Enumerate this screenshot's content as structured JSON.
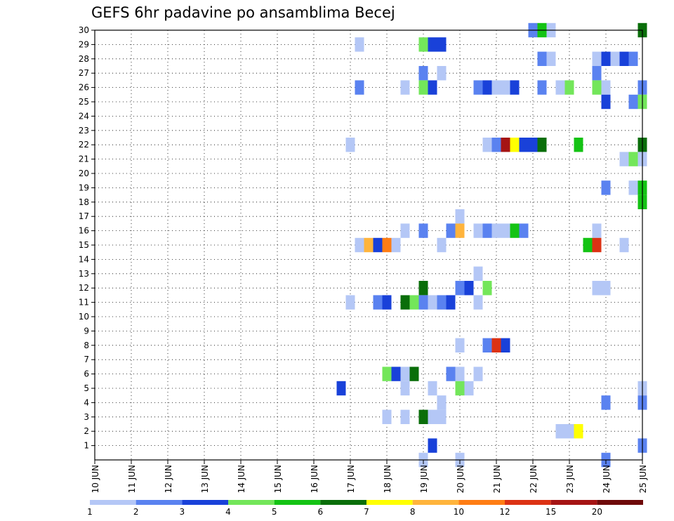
{
  "chart_data": {
    "type": "heatmap",
    "title": "GEFS 6hr padavine po ansamblima Becej",
    "x_tick_labels": [
      "10 JUN",
      "11 JUN",
      "12 JUN",
      "13 JUN",
      "14 JUN",
      "15 JUN",
      "16 JUN",
      "17 JUN",
      "18 JUN",
      "19 JUN",
      "20 JUN",
      "21 JUN",
      "22 JUN",
      "23 JUN",
      "24 JUN",
      "25 JUN"
    ],
    "x_range_days": [
      10,
      25
    ],
    "step_days": 0.25,
    "y_tick_labels": [
      "1",
      "2",
      "3",
      "4",
      "5",
      "6",
      "7",
      "8",
      "9",
      "10",
      "11",
      "12",
      "13",
      "14",
      "15",
      "16",
      "17",
      "18",
      "19",
      "20",
      "21",
      "22",
      "23",
      "24",
      "25",
      "26",
      "27",
      "28",
      "29",
      "30"
    ],
    "y_range": [
      0,
      30
    ],
    "grid": "dotted",
    "legend": {
      "position": "bottom",
      "thresholds": [
        "1",
        "2",
        "3",
        "4",
        "5",
        "6",
        "7",
        "8",
        "10",
        "12",
        "15",
        "20"
      ],
      "colors": [
        "#b4c7f6",
        "#5a82f0",
        "#1941d9",
        "#73e65a",
        "#14c314",
        "#0a6e0a",
        "#ffff00",
        "#ffb43c",
        "#ff7d14",
        "#dc3214",
        "#a51414",
        "#6e0a0a"
      ]
    },
    "cells": [
      {
        "member": 30,
        "day": 22.0,
        "cls": 1
      },
      {
        "member": 30,
        "day": 22.25,
        "cls": 4
      },
      {
        "member": 30,
        "day": 22.5,
        "cls": 0
      },
      {
        "member": 30,
        "day": 25.0,
        "cls": 5
      },
      {
        "member": 29,
        "day": 17.25,
        "cls": 0
      },
      {
        "member": 29,
        "day": 19.0,
        "cls": 3
      },
      {
        "member": 29,
        "day": 19.25,
        "cls": 2
      },
      {
        "member": 29,
        "day": 19.5,
        "cls": 2
      },
      {
        "member": 28,
        "day": 22.25,
        "cls": 1
      },
      {
        "member": 28,
        "day": 22.5,
        "cls": 0
      },
      {
        "member": 28,
        "day": 23.75,
        "cls": 0
      },
      {
        "member": 28,
        "day": 24.0,
        "cls": 2
      },
      {
        "member": 28,
        "day": 24.25,
        "cls": 0
      },
      {
        "member": 28,
        "day": 24.5,
        "cls": 2
      },
      {
        "member": 28,
        "day": 24.75,
        "cls": 1
      },
      {
        "member": 27,
        "day": 19.0,
        "cls": 1
      },
      {
        "member": 27,
        "day": 19.5,
        "cls": 0
      },
      {
        "member": 27,
        "day": 23.75,
        "cls": 1
      },
      {
        "member": 26,
        "day": 17.25,
        "cls": 1
      },
      {
        "member": 26,
        "day": 18.5,
        "cls": 0
      },
      {
        "member": 26,
        "day": 19.0,
        "cls": 3
      },
      {
        "member": 26,
        "day": 19.25,
        "cls": 2
      },
      {
        "member": 26,
        "day": 20.5,
        "cls": 1
      },
      {
        "member": 26,
        "day": 20.75,
        "cls": 2
      },
      {
        "member": 26,
        "day": 21.0,
        "cls": 0
      },
      {
        "member": 26,
        "day": 21.25,
        "cls": 0
      },
      {
        "member": 26,
        "day": 21.5,
        "cls": 2
      },
      {
        "member": 26,
        "day": 22.25,
        "cls": 1
      },
      {
        "member": 26,
        "day": 22.75,
        "cls": 0
      },
      {
        "member": 26,
        "day": 23.0,
        "cls": 3
      },
      {
        "member": 26,
        "day": 23.75,
        "cls": 3
      },
      {
        "member": 26,
        "day": 24.0,
        "cls": 0
      },
      {
        "member": 26,
        "day": 25.0,
        "cls": 1
      },
      {
        "member": 25,
        "day": 24.0,
        "cls": 2
      },
      {
        "member": 25,
        "day": 24.75,
        "cls": 1
      },
      {
        "member": 25,
        "day": 25.0,
        "cls": 3
      },
      {
        "member": 22,
        "day": 17.0,
        "cls": 0
      },
      {
        "member": 22,
        "day": 20.75,
        "cls": 0
      },
      {
        "member": 22,
        "day": 21.0,
        "cls": 1
      },
      {
        "member": 22,
        "day": 21.25,
        "cls": 10
      },
      {
        "member": 22,
        "day": 21.5,
        "cls": 6
      },
      {
        "member": 22,
        "day": 21.75,
        "cls": 2
      },
      {
        "member": 22,
        "day": 22.0,
        "cls": 2
      },
      {
        "member": 22,
        "day": 22.25,
        "cls": 5
      },
      {
        "member": 22,
        "day": 23.25,
        "cls": 4
      },
      {
        "member": 22,
        "day": 25.0,
        "cls": 5
      },
      {
        "member": 21,
        "day": 24.5,
        "cls": 0
      },
      {
        "member": 21,
        "day": 24.75,
        "cls": 3
      },
      {
        "member": 21,
        "day": 25.0,
        "cls": 0
      },
      {
        "member": 19,
        "day": 24.0,
        "cls": 1
      },
      {
        "member": 19,
        "day": 24.75,
        "cls": 0
      },
      {
        "member": 19,
        "day": 25.0,
        "cls": 4
      },
      {
        "member": 18,
        "day": 25.0,
        "cls": 4
      },
      {
        "member": 17,
        "day": 20.0,
        "cls": 0
      },
      {
        "member": 16,
        "day": 18.5,
        "cls": 0
      },
      {
        "member": 16,
        "day": 19.0,
        "cls": 1
      },
      {
        "member": 16,
        "day": 19.75,
        "cls": 1
      },
      {
        "member": 16,
        "day": 20.0,
        "cls": 7
      },
      {
        "member": 16,
        "day": 20.5,
        "cls": 0
      },
      {
        "member": 16,
        "day": 20.75,
        "cls": 1
      },
      {
        "member": 16,
        "day": 21.0,
        "cls": 0
      },
      {
        "member": 16,
        "day": 21.25,
        "cls": 0
      },
      {
        "member": 16,
        "day": 21.5,
        "cls": 4
      },
      {
        "member": 16,
        "day": 21.75,
        "cls": 1
      },
      {
        "member": 16,
        "day": 23.75,
        "cls": 0
      },
      {
        "member": 15,
        "day": 17.25,
        "cls": 0
      },
      {
        "member": 15,
        "day": 17.5,
        "cls": 7
      },
      {
        "member": 15,
        "day": 17.75,
        "cls": 2
      },
      {
        "member": 15,
        "day": 18.0,
        "cls": 8
      },
      {
        "member": 15,
        "day": 18.25,
        "cls": 0
      },
      {
        "member": 15,
        "day": 19.5,
        "cls": 0
      },
      {
        "member": 15,
        "day": 23.5,
        "cls": 4
      },
      {
        "member": 15,
        "day": 23.75,
        "cls": 9
      },
      {
        "member": 15,
        "day": 24.5,
        "cls": 0
      },
      {
        "member": 13,
        "day": 20.5,
        "cls": 0
      },
      {
        "member": 12,
        "day": 19.0,
        "cls": 5
      },
      {
        "member": 12,
        "day": 20.0,
        "cls": 1
      },
      {
        "member": 12,
        "day": 20.25,
        "cls": 2
      },
      {
        "member": 12,
        "day": 20.75,
        "cls": 3
      },
      {
        "member": 12,
        "day": 23.75,
        "cls": 0
      },
      {
        "member": 12,
        "day": 24.0,
        "cls": 0
      },
      {
        "member": 11,
        "day": 17.0,
        "cls": 0
      },
      {
        "member": 11,
        "day": 17.75,
        "cls": 1
      },
      {
        "member": 11,
        "day": 18.0,
        "cls": 2
      },
      {
        "member": 11,
        "day": 18.5,
        "cls": 5
      },
      {
        "member": 11,
        "day": 18.75,
        "cls": 3
      },
      {
        "member": 11,
        "day": 19.0,
        "cls": 1
      },
      {
        "member": 11,
        "day": 19.25,
        "cls": 0
      },
      {
        "member": 11,
        "day": 19.5,
        "cls": 1
      },
      {
        "member": 11,
        "day": 19.75,
        "cls": 2
      },
      {
        "member": 11,
        "day": 20.5,
        "cls": 0
      },
      {
        "member": 8,
        "day": 20.0,
        "cls": 0
      },
      {
        "member": 8,
        "day": 20.75,
        "cls": 1
      },
      {
        "member": 8,
        "day": 21.0,
        "cls": 9
      },
      {
        "member": 8,
        "day": 21.25,
        "cls": 2
      },
      {
        "member": 6,
        "day": 18.0,
        "cls": 3
      },
      {
        "member": 6,
        "day": 18.25,
        "cls": 2
      },
      {
        "member": 6,
        "day": 18.5,
        "cls": 0
      },
      {
        "member": 6,
        "day": 18.75,
        "cls": 5
      },
      {
        "member": 6,
        "day": 19.75,
        "cls": 1
      },
      {
        "member": 6,
        "day": 20.0,
        "cls": 0
      },
      {
        "member": 6,
        "day": 20.5,
        "cls": 0
      },
      {
        "member": 5,
        "day": 16.75,
        "cls": 2
      },
      {
        "member": 5,
        "day": 18.5,
        "cls": 0
      },
      {
        "member": 5,
        "day": 19.25,
        "cls": 0
      },
      {
        "member": 5,
        "day": 20.0,
        "cls": 3
      },
      {
        "member": 5,
        "day": 20.25,
        "cls": 0
      },
      {
        "member": 5,
        "day": 25.0,
        "cls": 0
      },
      {
        "member": 4,
        "day": 19.5,
        "cls": 0
      },
      {
        "member": 4,
        "day": 24.0,
        "cls": 1
      },
      {
        "member": 4,
        "day": 25.0,
        "cls": 1
      },
      {
        "member": 3,
        "day": 18.0,
        "cls": 0
      },
      {
        "member": 3,
        "day": 18.5,
        "cls": 0
      },
      {
        "member": 3,
        "day": 19.0,
        "cls": 5
      },
      {
        "member": 3,
        "day": 19.25,
        "cls": 0
      },
      {
        "member": 3,
        "day": 19.5,
        "cls": 0
      },
      {
        "member": 2,
        "day": 22.75,
        "cls": 0
      },
      {
        "member": 2,
        "day": 23.0,
        "cls": 0
      },
      {
        "member": 2,
        "day": 23.25,
        "cls": 6
      },
      {
        "member": 1,
        "day": 19.25,
        "cls": 2
      },
      {
        "member": 1,
        "day": 25.0,
        "cls": 1
      },
      {
        "member": 0,
        "day": 19.0,
        "cls": 0
      },
      {
        "member": 0,
        "day": 20.0,
        "cls": 0
      },
      {
        "member": 0,
        "day": 24.0,
        "cls": 1
      }
    ]
  }
}
